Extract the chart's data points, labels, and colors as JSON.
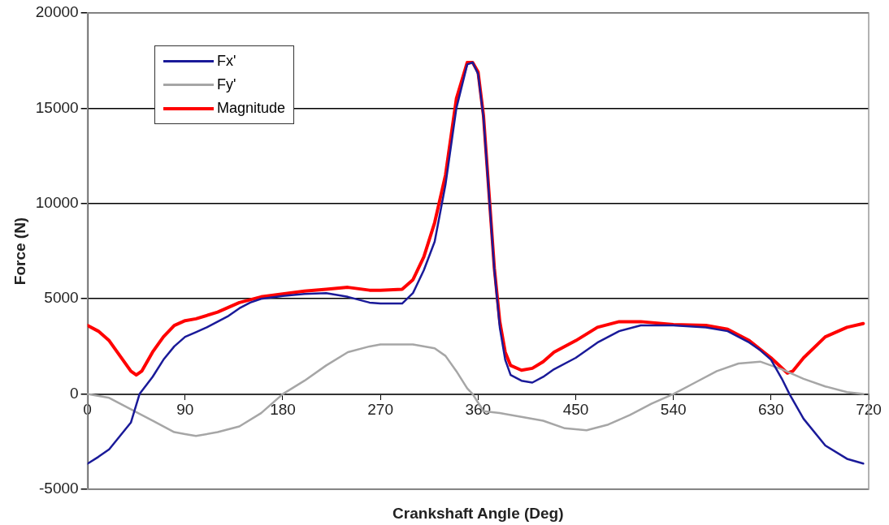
{
  "chart_data": {
    "type": "line",
    "xlabel": "Crankshaft Angle (Deg)",
    "ylabel": "Force (N)",
    "xlim": [
      0,
      720
    ],
    "xticks": [
      0,
      90,
      180,
      270,
      360,
      450,
      540,
      630,
      720
    ],
    "ylim": [
      -5000,
      20000
    ],
    "yticks": [
      -5000,
      0,
      5000,
      10000,
      15000,
      20000
    ],
    "grid": "y",
    "legend": "top left",
    "marker": "none",
    "line_style": "solid",
    "series": [
      {
        "name": "Fx'",
        "color": "#1a1a99",
        "x": [
          0,
          10,
          20,
          30,
          40,
          48,
          60,
          70,
          80,
          90,
          100,
          110,
          120,
          130,
          140,
          150,
          160,
          180,
          200,
          220,
          240,
          260,
          270,
          290,
          300,
          310,
          320,
          330,
          340,
          350,
          355,
          360,
          365,
          370,
          375,
          380,
          385,
          390,
          400,
          410,
          420,
          430,
          450,
          470,
          490,
          510,
          540,
          570,
          590,
          610,
          620,
          630,
          640,
          647,
          660,
          680,
          700,
          715
        ],
        "values": [
          -3660,
          -3300,
          -2900,
          -2200,
          -1500,
          0,
          900,
          1800,
          2500,
          3000,
          3250,
          3500,
          3800,
          4100,
          4500,
          4800,
          5000,
          5150,
          5250,
          5300,
          5100,
          4800,
          4750,
          4750,
          5300,
          6500,
          8000,
          11000,
          15000,
          17300,
          17400,
          16800,
          14500,
          10500,
          6500,
          3500,
          1800,
          1000,
          700,
          600,
          900,
          1300,
          1900,
          2700,
          3300,
          3600,
          3600,
          3500,
          3300,
          2700,
          2300,
          1800,
          800,
          0,
          -1300,
          -2700,
          -3400,
          -3650
        ]
      },
      {
        "name": "Fy'",
        "color": "#a6a6a6",
        "x": [
          0,
          20,
          40,
          60,
          80,
          90,
          100,
          120,
          140,
          160,
          180,
          200,
          220,
          240,
          260,
          270,
          300,
          320,
          330,
          340,
          350,
          355,
          365,
          380,
          400,
          420,
          440,
          460,
          480,
          500,
          520,
          540,
          560,
          580,
          600,
          620,
          640,
          660,
          680,
          700,
          715
        ],
        "values": [
          0,
          -200,
          -800,
          -1400,
          -2000,
          -2100,
          -2200,
          -2000,
          -1700,
          -1000,
          0,
          700,
          1500,
          2200,
          2500,
          2600,
          2600,
          2400,
          2000,
          1200,
          300,
          0,
          -900,
          -1000,
          -1200,
          -1400,
          -1800,
          -1900,
          -1600,
          -1100,
          -500,
          0,
          600,
          1200,
          1600,
          1700,
          1300,
          800,
          400,
          100,
          0
        ]
      },
      {
        "name": "Magnitude",
        "color": "#ff0000",
        "x": [
          0,
          10,
          20,
          30,
          40,
          45,
          50,
          60,
          70,
          80,
          90,
          100,
          120,
          140,
          160,
          180,
          200,
          220,
          240,
          260,
          270,
          290,
          300,
          310,
          320,
          330,
          340,
          350,
          355,
          360,
          365,
          370,
          375,
          380,
          385,
          390,
          400,
          410,
          420,
          430,
          450,
          470,
          490,
          510,
          540,
          570,
          590,
          610,
          630,
          645,
          650,
          660,
          680,
          700,
          715
        ],
        "values": [
          3600,
          3300,
          2800,
          2000,
          1200,
          1000,
          1200,
          2200,
          3000,
          3600,
          3850,
          3950,
          4300,
          4800,
          5100,
          5250,
          5400,
          5500,
          5600,
          5450,
          5450,
          5500,
          6000,
          7200,
          9000,
          11500,
          15500,
          17400,
          17400,
          16900,
          14600,
          10600,
          6600,
          3800,
          2200,
          1500,
          1250,
          1350,
          1700,
          2200,
          2800,
          3500,
          3800,
          3800,
          3650,
          3600,
          3400,
          2800,
          1900,
          1100,
          1200,
          1900,
          3000,
          3500,
          3700
        ]
      }
    ]
  }
}
